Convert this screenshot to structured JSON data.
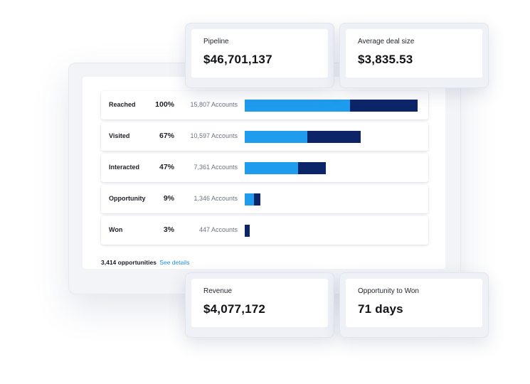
{
  "funnel": {
    "colors": {
      "light": "#1f9cee",
      "dark": "#0b2568"
    },
    "rows": [
      {
        "stage": "Reached",
        "percent": "100%",
        "accounts": "15,807 Accounts",
        "bar_fraction": 1.0,
        "light_fraction": 0.61
      },
      {
        "stage": "Visited",
        "percent": "67%",
        "accounts": "10,597 Accounts",
        "bar_fraction": 0.67,
        "light_fraction": 0.54
      },
      {
        "stage": "Interacted",
        "percent": "47%",
        "accounts": "7,361 Accounts",
        "bar_fraction": 0.47,
        "light_fraction": 0.66
      },
      {
        "stage": "Opportunity",
        "percent": "9%",
        "accounts": "1,346 Accounts",
        "bar_fraction": 0.09,
        "light_fraction": 0.6
      },
      {
        "stage": "Won",
        "percent": "3%",
        "accounts": "447 Accounts",
        "bar_fraction": 0.03,
        "light_fraction": 0.0
      }
    ],
    "opportunities": "3,414 opportunities",
    "see_details": "See details"
  },
  "metrics": {
    "pipeline": {
      "label": "Pipeline",
      "value": "$46,701,137"
    },
    "avg_deal": {
      "label": "Average deal size",
      "value": "$3,835.53"
    },
    "revenue": {
      "label": "Revenue",
      "value": "$4,077,172"
    },
    "opp_to_won": {
      "label": "Opportunity to Won",
      "value": "71 days"
    }
  }
}
